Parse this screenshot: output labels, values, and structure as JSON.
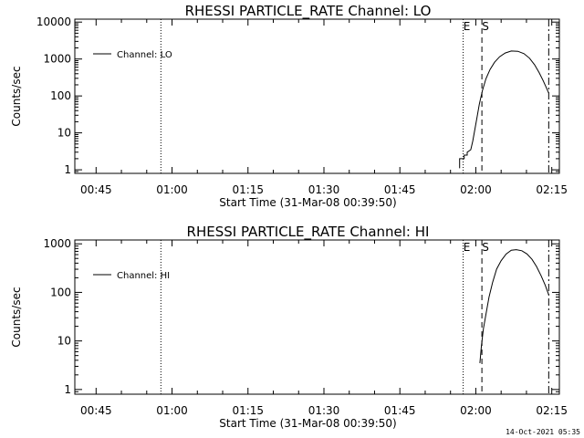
{
  "colors": {
    "background": "#ffffff",
    "foreground": "#000000"
  },
  "footer": {
    "timestamp": "14-Oct-2021 05:35"
  },
  "chart_data": [
    {
      "type": "line",
      "title": "RHESSI PARTICLE_RATE Channel: LO",
      "xlabel": "Start Time (31-Mar-08 00:39:50)",
      "ylabel": "Counts/sec",
      "scale_y": "log",
      "xlim": [
        40.8,
        136.5
      ],
      "ylim": [
        0.8,
        12000
      ],
      "xticks": [
        {
          "x": 45,
          "label": "00:45"
        },
        {
          "x": 60,
          "label": "01:00"
        },
        {
          "x": 75,
          "label": "01:15"
        },
        {
          "x": 90,
          "label": "01:30"
        },
        {
          "x": 105,
          "label": "01:45"
        },
        {
          "x": 120,
          "label": "02:00"
        },
        {
          "x": 135,
          "label": "02:15"
        }
      ],
      "yticks": [
        {
          "y": 1,
          "label": "1"
        },
        {
          "y": 10,
          "label": "10"
        },
        {
          "y": 100,
          "label": "100"
        },
        {
          "y": 1000,
          "label": "1000"
        },
        {
          "y": 10000,
          "label": "10000"
        }
      ],
      "legend": {
        "label": "Channel: LO",
        "position": "top-left"
      },
      "markers": [
        {
          "x": 57.8,
          "style": "dotted",
          "label": ""
        },
        {
          "x": 117.5,
          "style": "dotted",
          "label": "E"
        },
        {
          "x": 121.2,
          "style": "dashed",
          "label": "S"
        },
        {
          "x": 134.4,
          "style": "dashdot",
          "label": ""
        }
      ],
      "series": [
        {
          "x": [
            116.8,
            116.8,
            117.7,
            117.7,
            118.3,
            118.3,
            119.0,
            119.4,
            119.8,
            120.2,
            120.7,
            121.3,
            122.0,
            122.8,
            123.7,
            124.7,
            125.8,
            127.0,
            128.3,
            129.5,
            130.6,
            131.6,
            132.5,
            133.3,
            134.0,
            134.4
          ],
          "y": [
            1.1,
            2.0,
            2.0,
            2.5,
            2.5,
            3.0,
            3.5,
            6,
            12,
            25,
            60,
            140,
            290,
            520,
            820,
            1150,
            1450,
            1650,
            1620,
            1400,
            1050,
            700,
            430,
            260,
            160,
            120
          ]
        }
      ]
    },
    {
      "type": "line",
      "title": "RHESSI PARTICLE_RATE Channel: HI",
      "xlabel": "Start Time (31-Mar-08 00:39:50)",
      "ylabel": "Counts/sec",
      "scale_y": "log",
      "xlim": [
        40.8,
        136.5
      ],
      "ylim": [
        0.8,
        1200
      ],
      "xticks": [
        {
          "x": 45,
          "label": "00:45"
        },
        {
          "x": 60,
          "label": "01:00"
        },
        {
          "x": 75,
          "label": "01:15"
        },
        {
          "x": 90,
          "label": "01:30"
        },
        {
          "x": 105,
          "label": "01:45"
        },
        {
          "x": 120,
          "label": "02:00"
        },
        {
          "x": 135,
          "label": "02:15"
        }
      ],
      "yticks": [
        {
          "y": 1,
          "label": "1"
        },
        {
          "y": 10,
          "label": "10"
        },
        {
          "y": 100,
          "label": "100"
        },
        {
          "y": 1000,
          "label": "1000"
        }
      ],
      "legend": {
        "label": "Channel: HI",
        "position": "top-left"
      },
      "markers": [
        {
          "x": 57.8,
          "style": "dotted",
          "label": ""
        },
        {
          "x": 117.5,
          "style": "dotted",
          "label": "E"
        },
        {
          "x": 121.2,
          "style": "dashed",
          "label": "S"
        },
        {
          "x": 134.4,
          "style": "dashdot",
          "label": ""
        }
      ],
      "series": [
        {
          "x": [
            120.8,
            121.1,
            121.5,
            122.0,
            122.6,
            123.3,
            124.1,
            125.0,
            126.0,
            127.0,
            128.0,
            129.1,
            130.1,
            131.1,
            132.0,
            132.9,
            133.7,
            134.4
          ],
          "y": [
            3.5,
            8,
            18,
            35,
            80,
            160,
            300,
            450,
            620,
            740,
            760,
            720,
            620,
            480,
            340,
            220,
            140,
            90
          ]
        }
      ]
    }
  ]
}
